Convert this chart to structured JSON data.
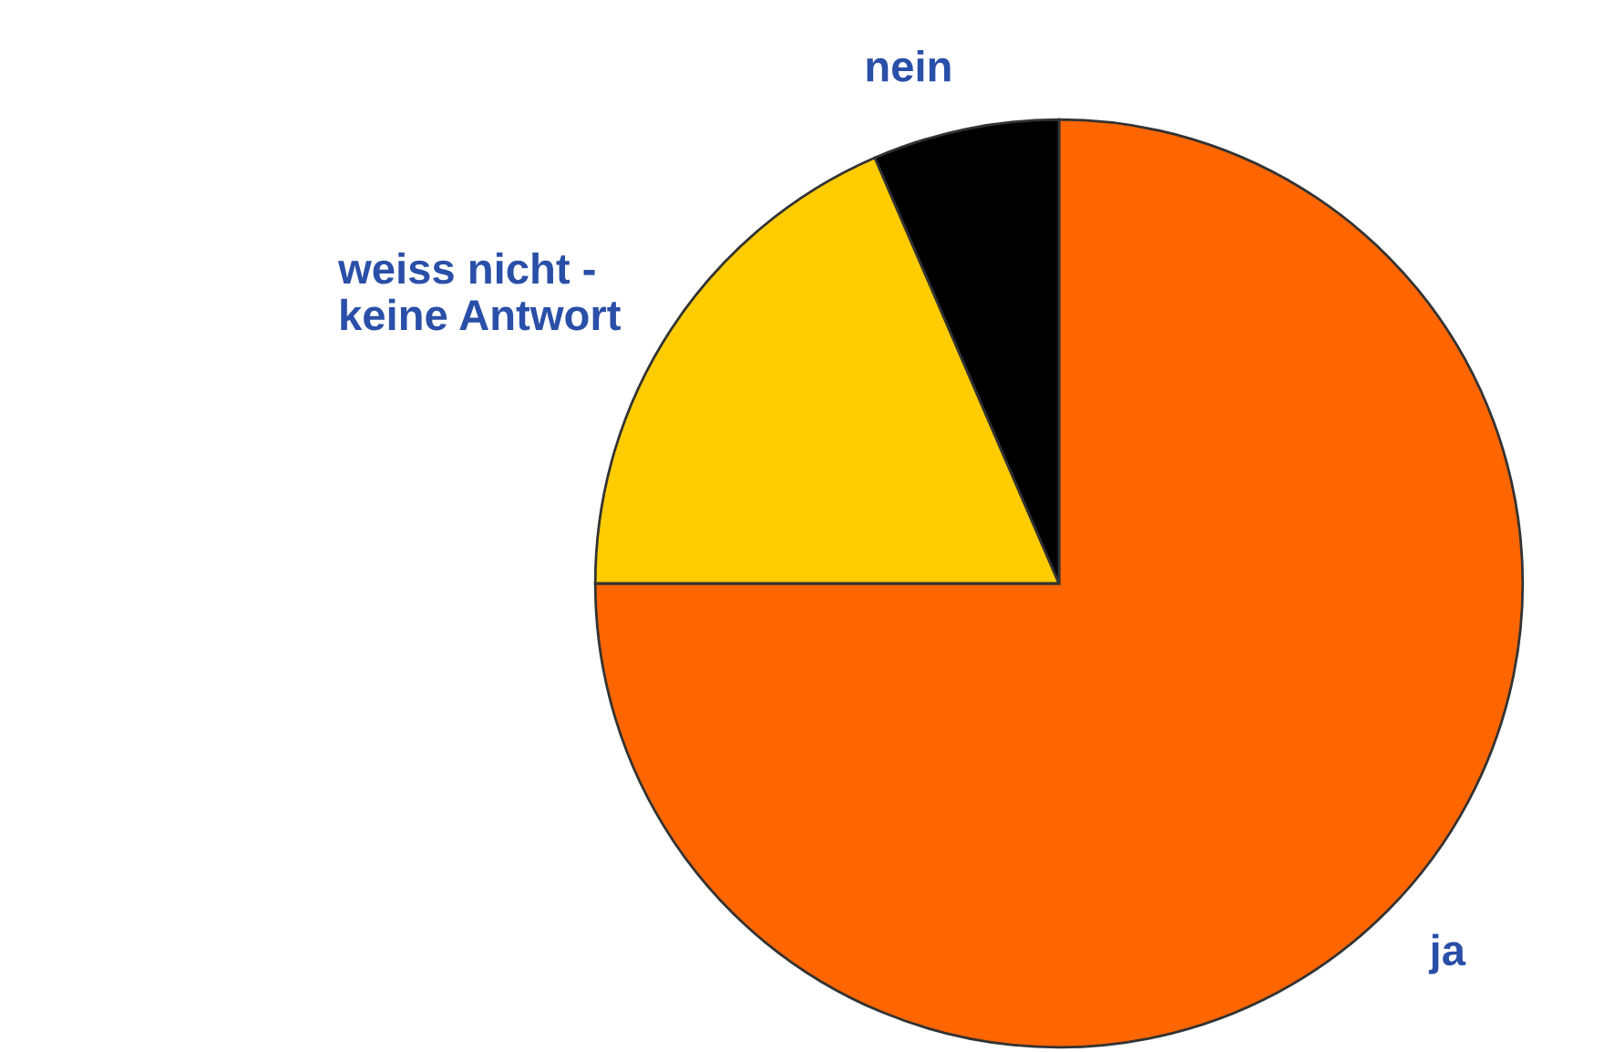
{
  "chart_data": {
    "type": "pie",
    "categories": [
      "ja",
      "weiss nicht -\nkeine Antwort",
      "nein"
    ],
    "values": [
      75,
      18.5,
      6.5
    ],
    "colors": [
      "#ff6600",
      "#ffcc00",
      "#000000"
    ]
  }
}
